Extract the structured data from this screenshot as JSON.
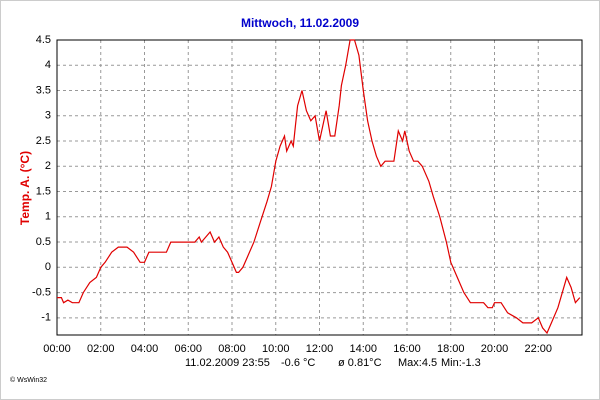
{
  "chart_data": {
    "type": "line",
    "title": "Mittwoch, 11.02.2009",
    "y_label": "Temp. A.  (°C)",
    "footer": [
      "11.02.2009  23:55",
      "-0.6 °C",
      "ø 0.81°C",
      "Max:4.5",
      "Min:-1.3"
    ],
    "credit": "© WsWin32",
    "color": "#e00000",
    "grid": true,
    "xlim": [
      0,
      24
    ],
    "xticks": [
      {
        "value": 0,
        "label": "00:00"
      },
      {
        "value": 2,
        "label": "02:00"
      },
      {
        "value": 4,
        "label": "04:00"
      },
      {
        "value": 6,
        "label": "06:00"
      },
      {
        "value": 8,
        "label": "08:00"
      },
      {
        "value": 10,
        "label": "10:00"
      },
      {
        "value": 12,
        "label": "12:00"
      },
      {
        "value": 14,
        "label": "14:00"
      },
      {
        "value": 16,
        "label": "16:00"
      },
      {
        "value": 18,
        "label": "18:00"
      },
      {
        "value": 20,
        "label": "20:00"
      },
      {
        "value": 22,
        "label": "22:00"
      }
    ],
    "ylim": [
      -1.34,
      4.5
    ],
    "yticks": [
      -1,
      -0.5,
      0,
      0.5,
      1,
      1.5,
      2,
      2.5,
      3,
      3.5,
      4,
      4.5
    ],
    "x": [
      0,
      0.2,
      0.3,
      0.5,
      0.7,
      1.0,
      1.2,
      1.5,
      1.8,
      2.0,
      2.2,
      2.5,
      2.8,
      3.2,
      3.5,
      3.8,
      4.0,
      4.2,
      4.5,
      5.0,
      5.2,
      5.5,
      6.0,
      6.3,
      6.5,
      6.6,
      6.8,
      7.0,
      7.2,
      7.4,
      7.6,
      7.8,
      8.0,
      8.2,
      8.3,
      8.5,
      8.7,
      9.0,
      9.3,
      9.6,
      9.8,
      10.0,
      10.2,
      10.4,
      10.5,
      10.7,
      10.8,
      10.9,
      11.0,
      11.2,
      11.4,
      11.6,
      11.8,
      12.0,
      12.2,
      12.3,
      12.5,
      12.7,
      12.9,
      13.0,
      13.2,
      13.4,
      13.6,
      13.8,
      14.0,
      14.2,
      14.4,
      14.6,
      14.8,
      15.0,
      15.2,
      15.4,
      15.6,
      15.8,
      15.9,
      16.1,
      16.3,
      16.5,
      16.7,
      17.0,
      17.2,
      17.5,
      17.8,
      18.0,
      18.3,
      18.6,
      18.9,
      19.2,
      19.5,
      19.7,
      19.9,
      20.0,
      20.3,
      20.6,
      21.0,
      21.3,
      21.7,
      22.0,
      22.2,
      22.4,
      22.6,
      22.9,
      23.1,
      23.3,
      23.5,
      23.7,
      23.9
    ],
    "values": [
      -0.6,
      -0.6,
      -0.7,
      -0.65,
      -0.7,
      -0.7,
      -0.5,
      -0.3,
      -0.2,
      0.0,
      0.1,
      0.3,
      0.4,
      0.4,
      0.3,
      0.1,
      0.1,
      0.3,
      0.3,
      0.3,
      0.5,
      0.5,
      0.5,
      0.5,
      0.6,
      0.5,
      0.6,
      0.7,
      0.5,
      0.6,
      0.4,
      0.3,
      0.1,
      -0.1,
      -0.1,
      0.0,
      0.2,
      0.5,
      0.9,
      1.3,
      1.6,
      2.1,
      2.4,
      2.6,
      2.3,
      2.5,
      2.4,
      2.8,
      3.2,
      3.5,
      3.1,
      2.9,
      3.0,
      2.5,
      2.9,
      3.1,
      2.6,
      2.6,
      3.2,
      3.6,
      4.0,
      4.5,
      4.5,
      4.2,
      3.5,
      2.9,
      2.5,
      2.2,
      2.0,
      2.1,
      2.1,
      2.1,
      2.7,
      2.5,
      2.7,
      2.3,
      2.1,
      2.1,
      2.0,
      1.7,
      1.4,
      1.0,
      0.5,
      0.1,
      -0.2,
      -0.5,
      -0.7,
      -0.7,
      -0.7,
      -0.8,
      -0.8,
      -0.7,
      -0.7,
      -0.9,
      -1.0,
      -1.1,
      -1.1,
      -1.0,
      -1.2,
      -1.3,
      -1.1,
      -0.8,
      -0.5,
      -0.2,
      -0.4,
      -0.7,
      -0.6
    ]
  }
}
